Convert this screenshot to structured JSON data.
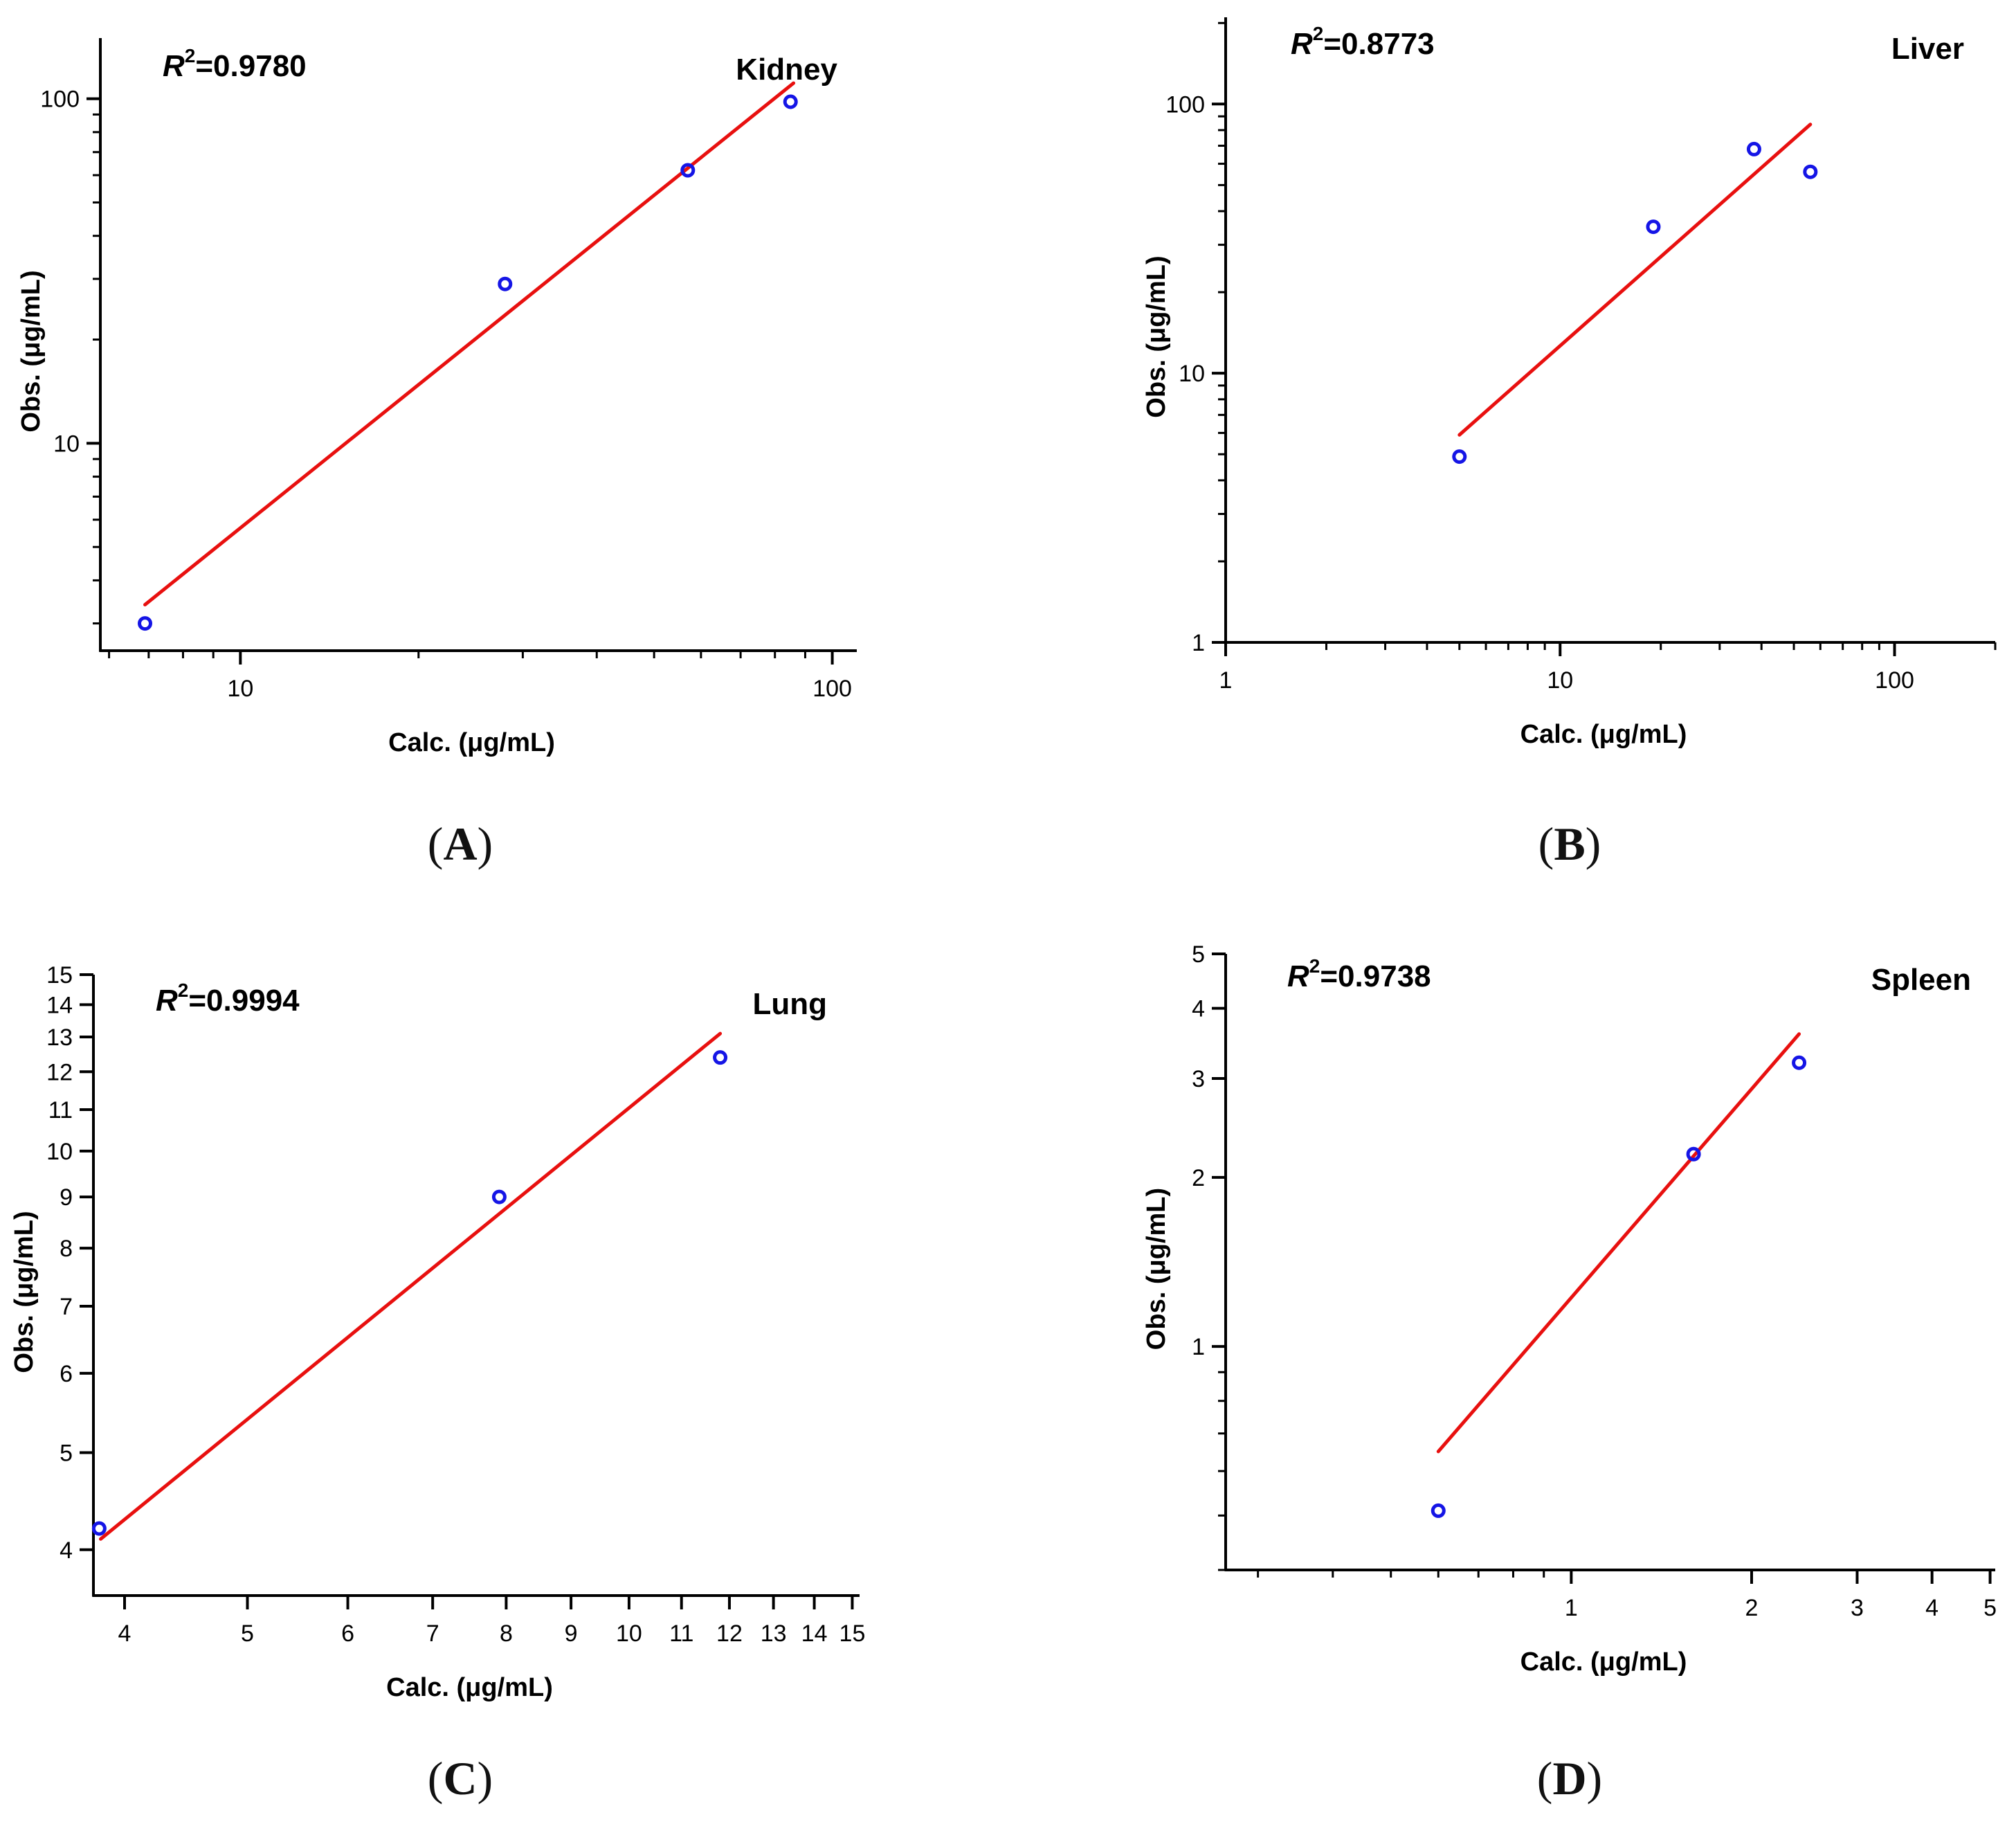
{
  "figure": {
    "point_color": "#1515e6",
    "fit_color": "#e8100f",
    "axis_color": "#000000"
  },
  "chart_data": [
    {
      "type": "scatter",
      "panel": "(A)",
      "caption_letter": "A",
      "title": "Kidney",
      "r2_label": "R",
      "r2_sup": "2",
      "r2_value": "=0.9780",
      "xlabel": "Calc. (μg/mL)",
      "ylabel": "Obs. (μg/mL)",
      "xscale": "log",
      "yscale": "log",
      "xlim": [
        5.8,
        110
      ],
      "ylim": [
        2.5,
        150
      ],
      "xticks": [
        {
          "value": 10,
          "label": "10"
        },
        {
          "value": 100,
          "label": "100"
        }
      ],
      "yticks": [
        {
          "value": 10,
          "label": "10"
        },
        {
          "value": 100,
          "label": "100"
        }
      ],
      "points": [
        {
          "x": 6.9,
          "y": 3.0
        },
        {
          "x": 28,
          "y": 29
        },
        {
          "x": 57,
          "y": 62
        },
        {
          "x": 85,
          "y": 98
        }
      ],
      "fit": [
        {
          "x": 6.9,
          "y": 3.4
        },
        {
          "x": 86,
          "y": 111
        }
      ]
    },
    {
      "type": "scatter",
      "panel": "(B)",
      "caption_letter": "B",
      "title": "Liver",
      "r2_label": "R",
      "r2_sup": "2",
      "r2_value": "=0.8773",
      "xlabel": "Calc. (μg/mL)",
      "ylabel": "Obs. (μg/mL)",
      "xscale": "log",
      "yscale": "log",
      "xlim": [
        1,
        200
      ],
      "ylim": [
        1,
        210
      ],
      "xticks": [
        {
          "value": 1,
          "label": "1"
        },
        {
          "value": 10,
          "label": "10"
        },
        {
          "value": 100,
          "label": "100"
        }
      ],
      "yticks": [
        {
          "value": 1,
          "label": "1"
        },
        {
          "value": 10,
          "label": "10"
        },
        {
          "value": 100,
          "label": "100"
        }
      ],
      "points": [
        {
          "x": 5.0,
          "y": 4.9
        },
        {
          "x": 19,
          "y": 35
        },
        {
          "x": 38,
          "y": 68
        },
        {
          "x": 56,
          "y": 56
        }
      ],
      "fit": [
        {
          "x": 5.0,
          "y": 5.9
        },
        {
          "x": 56,
          "y": 84
        }
      ]
    },
    {
      "type": "scatter",
      "panel": "(C)",
      "caption_letter": "C",
      "title": "Lung",
      "r2_label": "R",
      "r2_sup": "2",
      "r2_value": "=0.9994",
      "xlabel": "Calc. (μg/mL)",
      "ylabel": "Obs. (μg/mL)",
      "xscale": "log",
      "yscale": "log",
      "xlim": [
        3.78,
        15.2
      ],
      "ylim": [
        3.6,
        15
      ],
      "xticks": [
        {
          "value": 4,
          "label": "4"
        },
        {
          "value": 5,
          "label": "5"
        },
        {
          "value": 6,
          "label": "6"
        },
        {
          "value": 7,
          "label": "7"
        },
        {
          "value": 8,
          "label": "8"
        },
        {
          "value": 9,
          "label": "9"
        },
        {
          "value": 10,
          "label": "10"
        },
        {
          "value": 11,
          "label": "11"
        },
        {
          "value": 12,
          "label": "12"
        },
        {
          "value": 13,
          "label": "13"
        },
        {
          "value": 14,
          "label": "14"
        },
        {
          "value": 15,
          "label": "15"
        }
      ],
      "yticks": [
        {
          "value": 4,
          "label": "4"
        },
        {
          "value": 5,
          "label": "5"
        },
        {
          "value": 6,
          "label": "6"
        },
        {
          "value": 7,
          "label": "7"
        },
        {
          "value": 8,
          "label": "8"
        },
        {
          "value": 9,
          "label": "9"
        },
        {
          "value": 10,
          "label": "10"
        },
        {
          "value": 11,
          "label": "11"
        },
        {
          "value": 12,
          "label": "12"
        },
        {
          "value": 13,
          "label": "13"
        },
        {
          "value": 14,
          "label": "14"
        },
        {
          "value": 15,
          "label": "15"
        }
      ],
      "points": [
        {
          "x": 3.82,
          "y": 4.2
        },
        {
          "x": 7.9,
          "y": 9.0
        },
        {
          "x": 11.8,
          "y": 12.4
        }
      ],
      "fit": [
        {
          "x": 3.83,
          "y": 4.1
        },
        {
          "x": 11.8,
          "y": 13.1
        }
      ]
    },
    {
      "type": "scatter",
      "panel": "(D)",
      "caption_letter": "D",
      "title": "Spleen",
      "r2_label": "R",
      "r2_sup": "2",
      "r2_value": "=0.9738",
      "xlabel": "Calc. (μg/mL)",
      "ylabel": "Obs. (μg/mL)",
      "xscale": "log",
      "yscale": "log",
      "xlim": [
        0.265,
        5.1
      ],
      "ylim": [
        0.4,
        5
      ],
      "xticks": [
        {
          "value": 1,
          "label": "1"
        },
        {
          "value": 2,
          "label": "2"
        },
        {
          "value": 3,
          "label": "3"
        },
        {
          "value": 4,
          "label": "4"
        },
        {
          "value": 5,
          "label": "5"
        }
      ],
      "yticks": [
        {
          "value": 1,
          "label": "1"
        },
        {
          "value": 2,
          "label": "2"
        },
        {
          "value": 3,
          "label": "3"
        },
        {
          "value": 4,
          "label": "4"
        },
        {
          "value": 5,
          "label": "5"
        }
      ],
      "points": [
        {
          "x": 0.6,
          "y": 0.51
        },
        {
          "x": 1.6,
          "y": 2.2
        },
        {
          "x": 2.4,
          "y": 3.2
        }
      ],
      "fit": [
        {
          "x": 0.6,
          "y": 0.65
        },
        {
          "x": 2.4,
          "y": 3.6
        }
      ]
    }
  ]
}
